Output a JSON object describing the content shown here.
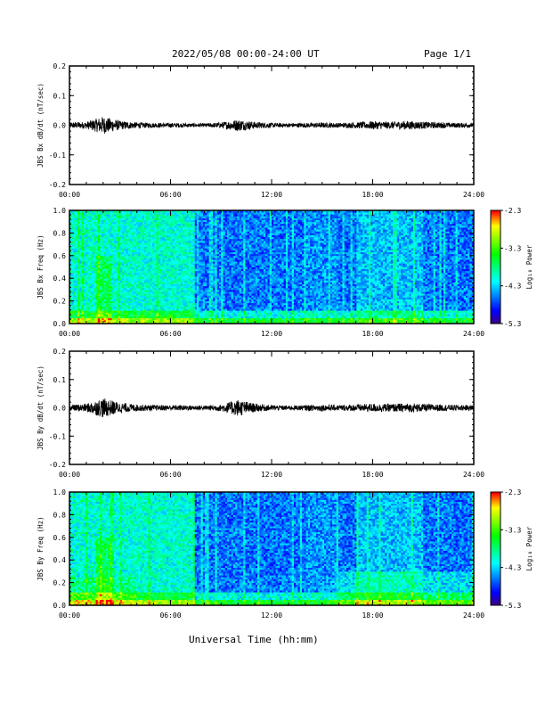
{
  "header": {
    "title": "2022/05/08  00:00-24:00 UT",
    "page": "Page 1/1"
  },
  "x_axis_label": "Universal Time (hh:mm)",
  "colors": {
    "trace": "#000000",
    "frame": "#000000"
  },
  "chart_data": [
    {
      "type": "line",
      "ylabel": "JBS Bx dB/dt (nT/sec)",
      "ylim": [
        -0.2,
        0.2
      ],
      "yticks": [
        "0.2",
        "0.1",
        "0.0",
        "-0.1",
        "-0.2"
      ],
      "xlim": [
        0,
        24
      ],
      "xtick_labels": [
        "00:00",
        "06:00",
        "12:00",
        "18:00",
        "24:00"
      ],
      "series": [
        {
          "x": [
            0,
            1,
            2,
            3,
            4,
            5,
            6,
            7,
            8,
            9,
            10,
            11,
            12,
            13,
            14,
            15,
            16,
            17,
            18,
            19,
            20,
            21,
            22,
            23,
            24
          ],
          "amplitude": [
            0.01,
            0.012,
            0.03,
            0.015,
            0.01,
            0.008,
            0.008,
            0.007,
            0.006,
            0.01,
            0.02,
            0.012,
            0.008,
            0.007,
            0.008,
            0.009,
            0.008,
            0.01,
            0.014,
            0.012,
            0.015,
            0.012,
            0.01,
            0.008,
            0.008
          ]
        }
      ]
    },
    {
      "type": "heatmap",
      "ylabel": "JBS Bx Freq (Hz)",
      "ylim": [
        0.0,
        1.0
      ],
      "yticks": [
        "1.0",
        "0.8",
        "0.6",
        "0.4",
        "0.2",
        "0.0"
      ],
      "xlim": [
        0,
        24
      ],
      "xtick_labels": [
        "00:00",
        "06:00",
        "12:00",
        "18:00",
        "24:00"
      ],
      "colorbar": {
        "label": "Log₁₀ Power",
        "ticks": [
          "-2.3",
          "-3.3",
          "-4.3",
          "-5.3"
        ],
        "range": [
          -5.3,
          -2.3
        ]
      }
    },
    {
      "type": "line",
      "ylabel": "JBS By dB/dt (nT/sec)",
      "ylim": [
        -0.2,
        0.2
      ],
      "yticks": [
        "0.2",
        "0.1",
        "0.0",
        "-0.1",
        "-0.2"
      ],
      "xlim": [
        0,
        24
      ],
      "xtick_labels": [
        "00:00",
        "06:00",
        "12:00",
        "18:00",
        "24:00"
      ],
      "series": [
        {
          "x": [
            0,
            1,
            2,
            3,
            4,
            5,
            6,
            7,
            8,
            9,
            10,
            11,
            12,
            13,
            14,
            15,
            16,
            17,
            18,
            19,
            20,
            21,
            22,
            23,
            24
          ],
          "amplitude": [
            0.01,
            0.015,
            0.035,
            0.018,
            0.012,
            0.01,
            0.01,
            0.009,
            0.008,
            0.012,
            0.03,
            0.015,
            0.01,
            0.008,
            0.01,
            0.012,
            0.01,
            0.012,
            0.015,
            0.014,
            0.016,
            0.014,
            0.012,
            0.01,
            0.01
          ]
        }
      ]
    },
    {
      "type": "heatmap",
      "ylabel": "JBS By Freq (Hz)",
      "ylim": [
        0.0,
        1.0
      ],
      "yticks": [
        "1.0",
        "0.8",
        "0.6",
        "0.4",
        "0.2",
        "0.0"
      ],
      "xlim": [
        0,
        24
      ],
      "xtick_labels": [
        "00:00",
        "06:00",
        "12:00",
        "18:00",
        "24:00"
      ],
      "colorbar": {
        "label": "Log₁₀ Power",
        "ticks": [
          "-2.3",
          "-3.3",
          "-4.3",
          "-5.3"
        ],
        "range": [
          -5.3,
          -2.3
        ]
      }
    }
  ]
}
